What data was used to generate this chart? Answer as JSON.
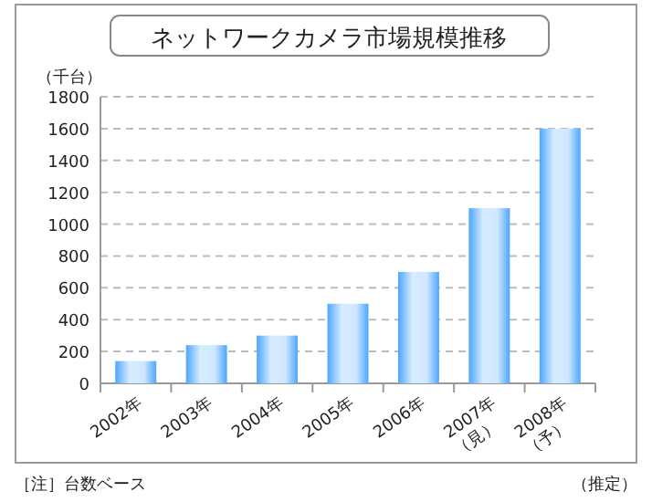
{
  "chart_data": {
    "type": "bar",
    "title": "ネットワークカメラ市場規模推移",
    "ylabel": "（千台）",
    "categories": [
      "2002年",
      "2003年",
      "2004年",
      "2005年",
      "2006年",
      "2007年\n（見）",
      "2008年\n（予）"
    ],
    "values": [
      140,
      240,
      300,
      500,
      700,
      1100,
      1600
    ],
    "color": "#4da6ff",
    "ylim": [
      0,
      1800
    ],
    "yticks": [
      0,
      200,
      400,
      600,
      800,
      1000,
      1200,
      1400,
      1600,
      1800
    ],
    "grid": "y",
    "annotations": [
      "［注］台数ベース",
      "（推定）"
    ]
  }
}
